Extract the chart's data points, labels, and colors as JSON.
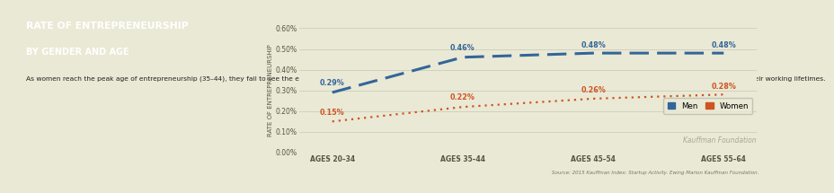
{
  "title_line1": "RATE OF ENTREPRENEURSHIP",
  "title_line2": "BY GENDER AND AGE",
  "description": "As women reach the peak age of entrepreneurship (35–44), they fail to see the explosive gains that their male counterparts see, and this effect widens the gap between men and women entrepreneurs throughout their working lifetimes.",
  "left_bg_color": "#9fa882",
  "right_bg_color": "#eae9d5",
  "bottom_band_color": "#dddcc8",
  "title_color": "#ffffff",
  "desc_color": "#222222",
  "categories": [
    "AGES 20–34",
    "AGES 35–44",
    "AGES 45–54",
    "AGES 55–64"
  ],
  "men_values": [
    0.0029,
    0.0046,
    0.0048,
    0.0048
  ],
  "women_values": [
    0.0015,
    0.0022,
    0.0026,
    0.0028
  ],
  "men_labels": [
    "0.29%",
    "0.46%",
    "0.48%",
    "0.48%"
  ],
  "women_labels": [
    "0.15%",
    "0.22%",
    "0.26%",
    "0.28%"
  ],
  "men_color": "#336699",
  "women_color": "#cc5522",
  "ylabel": "RATE OF ENTREPRENEURSHIP",
  "ylim_max": 0.006,
  "yticks": [
    0.0,
    0.001,
    0.002,
    0.003,
    0.004,
    0.005,
    0.006
  ],
  "ytick_labels": [
    "0.00%",
    "0.10%",
    "0.20%",
    "0.30%",
    "0.40%",
    "0.50%",
    "0.60%"
  ],
  "source_text": "Source: 2015 Kauffman Index: Startup Activity. Ewing Marion Kauffman Foundation.",
  "kauffman_text": "Kauffman Foundation",
  "legend_men": "Men",
  "legend_women": "Women"
}
